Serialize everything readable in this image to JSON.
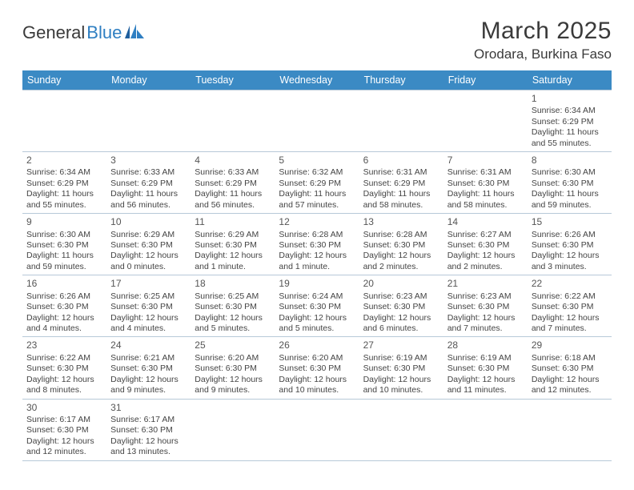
{
  "brand": {
    "word1": "General",
    "word2": "Blue"
  },
  "title": "March 2025",
  "location": "Orodara, Burkina Faso",
  "colors": {
    "header_bg": "#3b8ac4",
    "header_text": "#ffffff",
    "border": "#b7c9d8",
    "accent": "#2f7fc2",
    "text": "#3a3a3a"
  },
  "day_headers": [
    "Sunday",
    "Monday",
    "Tuesday",
    "Wednesday",
    "Thursday",
    "Friday",
    "Saturday"
  ],
  "weeks": [
    [
      null,
      null,
      null,
      null,
      null,
      null,
      {
        "n": "1",
        "sr": "Sunrise: 6:34 AM",
        "ss": "Sunset: 6:29 PM",
        "dl1": "Daylight: 11 hours",
        "dl2": "and 55 minutes."
      }
    ],
    [
      {
        "n": "2",
        "sr": "Sunrise: 6:34 AM",
        "ss": "Sunset: 6:29 PM",
        "dl1": "Daylight: 11 hours",
        "dl2": "and 55 minutes."
      },
      {
        "n": "3",
        "sr": "Sunrise: 6:33 AM",
        "ss": "Sunset: 6:29 PM",
        "dl1": "Daylight: 11 hours",
        "dl2": "and 56 minutes."
      },
      {
        "n": "4",
        "sr": "Sunrise: 6:33 AM",
        "ss": "Sunset: 6:29 PM",
        "dl1": "Daylight: 11 hours",
        "dl2": "and 56 minutes."
      },
      {
        "n": "5",
        "sr": "Sunrise: 6:32 AM",
        "ss": "Sunset: 6:29 PM",
        "dl1": "Daylight: 11 hours",
        "dl2": "and 57 minutes."
      },
      {
        "n": "6",
        "sr": "Sunrise: 6:31 AM",
        "ss": "Sunset: 6:29 PM",
        "dl1": "Daylight: 11 hours",
        "dl2": "and 58 minutes."
      },
      {
        "n": "7",
        "sr": "Sunrise: 6:31 AM",
        "ss": "Sunset: 6:30 PM",
        "dl1": "Daylight: 11 hours",
        "dl2": "and 58 minutes."
      },
      {
        "n": "8",
        "sr": "Sunrise: 6:30 AM",
        "ss": "Sunset: 6:30 PM",
        "dl1": "Daylight: 11 hours",
        "dl2": "and 59 minutes."
      }
    ],
    [
      {
        "n": "9",
        "sr": "Sunrise: 6:30 AM",
        "ss": "Sunset: 6:30 PM",
        "dl1": "Daylight: 11 hours",
        "dl2": "and 59 minutes."
      },
      {
        "n": "10",
        "sr": "Sunrise: 6:29 AM",
        "ss": "Sunset: 6:30 PM",
        "dl1": "Daylight: 12 hours",
        "dl2": "and 0 minutes."
      },
      {
        "n": "11",
        "sr": "Sunrise: 6:29 AM",
        "ss": "Sunset: 6:30 PM",
        "dl1": "Daylight: 12 hours",
        "dl2": "and 1 minute."
      },
      {
        "n": "12",
        "sr": "Sunrise: 6:28 AM",
        "ss": "Sunset: 6:30 PM",
        "dl1": "Daylight: 12 hours",
        "dl2": "and 1 minute."
      },
      {
        "n": "13",
        "sr": "Sunrise: 6:28 AM",
        "ss": "Sunset: 6:30 PM",
        "dl1": "Daylight: 12 hours",
        "dl2": "and 2 minutes."
      },
      {
        "n": "14",
        "sr": "Sunrise: 6:27 AM",
        "ss": "Sunset: 6:30 PM",
        "dl1": "Daylight: 12 hours",
        "dl2": "and 2 minutes."
      },
      {
        "n": "15",
        "sr": "Sunrise: 6:26 AM",
        "ss": "Sunset: 6:30 PM",
        "dl1": "Daylight: 12 hours",
        "dl2": "and 3 minutes."
      }
    ],
    [
      {
        "n": "16",
        "sr": "Sunrise: 6:26 AM",
        "ss": "Sunset: 6:30 PM",
        "dl1": "Daylight: 12 hours",
        "dl2": "and 4 minutes."
      },
      {
        "n": "17",
        "sr": "Sunrise: 6:25 AM",
        "ss": "Sunset: 6:30 PM",
        "dl1": "Daylight: 12 hours",
        "dl2": "and 4 minutes."
      },
      {
        "n": "18",
        "sr": "Sunrise: 6:25 AM",
        "ss": "Sunset: 6:30 PM",
        "dl1": "Daylight: 12 hours",
        "dl2": "and 5 minutes."
      },
      {
        "n": "19",
        "sr": "Sunrise: 6:24 AM",
        "ss": "Sunset: 6:30 PM",
        "dl1": "Daylight: 12 hours",
        "dl2": "and 5 minutes."
      },
      {
        "n": "20",
        "sr": "Sunrise: 6:23 AM",
        "ss": "Sunset: 6:30 PM",
        "dl1": "Daylight: 12 hours",
        "dl2": "and 6 minutes."
      },
      {
        "n": "21",
        "sr": "Sunrise: 6:23 AM",
        "ss": "Sunset: 6:30 PM",
        "dl1": "Daylight: 12 hours",
        "dl2": "and 7 minutes."
      },
      {
        "n": "22",
        "sr": "Sunrise: 6:22 AM",
        "ss": "Sunset: 6:30 PM",
        "dl1": "Daylight: 12 hours",
        "dl2": "and 7 minutes."
      }
    ],
    [
      {
        "n": "23",
        "sr": "Sunrise: 6:22 AM",
        "ss": "Sunset: 6:30 PM",
        "dl1": "Daylight: 12 hours",
        "dl2": "and 8 minutes."
      },
      {
        "n": "24",
        "sr": "Sunrise: 6:21 AM",
        "ss": "Sunset: 6:30 PM",
        "dl1": "Daylight: 12 hours",
        "dl2": "and 9 minutes."
      },
      {
        "n": "25",
        "sr": "Sunrise: 6:20 AM",
        "ss": "Sunset: 6:30 PM",
        "dl1": "Daylight: 12 hours",
        "dl2": "and 9 minutes."
      },
      {
        "n": "26",
        "sr": "Sunrise: 6:20 AM",
        "ss": "Sunset: 6:30 PM",
        "dl1": "Daylight: 12 hours",
        "dl2": "and 10 minutes."
      },
      {
        "n": "27",
        "sr": "Sunrise: 6:19 AM",
        "ss": "Sunset: 6:30 PM",
        "dl1": "Daylight: 12 hours",
        "dl2": "and 10 minutes."
      },
      {
        "n": "28",
        "sr": "Sunrise: 6:19 AM",
        "ss": "Sunset: 6:30 PM",
        "dl1": "Daylight: 12 hours",
        "dl2": "and 11 minutes."
      },
      {
        "n": "29",
        "sr": "Sunrise: 6:18 AM",
        "ss": "Sunset: 6:30 PM",
        "dl1": "Daylight: 12 hours",
        "dl2": "and 12 minutes."
      }
    ],
    [
      {
        "n": "30",
        "sr": "Sunrise: 6:17 AM",
        "ss": "Sunset: 6:30 PM",
        "dl1": "Daylight: 12 hours",
        "dl2": "and 12 minutes."
      },
      {
        "n": "31",
        "sr": "Sunrise: 6:17 AM",
        "ss": "Sunset: 6:30 PM",
        "dl1": "Daylight: 12 hours",
        "dl2": "and 13 minutes."
      },
      null,
      null,
      null,
      null,
      null
    ]
  ]
}
